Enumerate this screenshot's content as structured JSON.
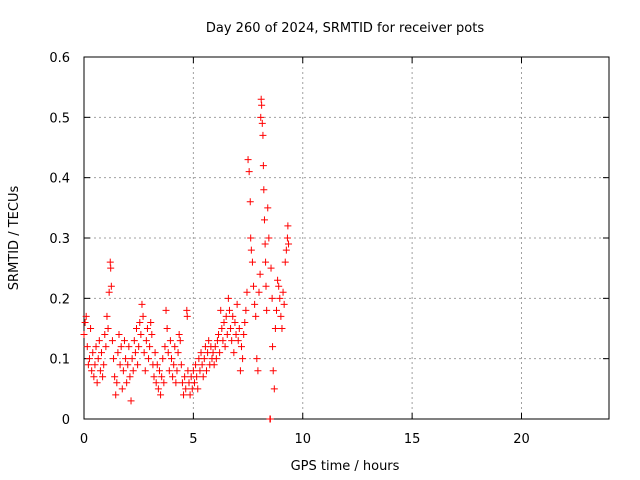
{
  "chart_data": {
    "type": "scatter",
    "title": "Day 260 of 2024, SRMTID for receiver pots",
    "xlabel": "GPS time / hours",
    "ylabel": "SRMTID / TECUs",
    "xlim": [
      0,
      24
    ],
    "ylim": [
      0,
      0.6
    ],
    "xticks": [
      0,
      5,
      10,
      15,
      20
    ],
    "xtick_labels": [
      "0",
      "5",
      "10",
      "15",
      "20"
    ],
    "yticks": [
      0,
      0.1,
      0.2,
      0.3,
      0.4,
      0.5,
      0.6
    ],
    "ytick_labels": [
      "0",
      "0.1",
      "0.2",
      "0.3",
      "0.4",
      "0.5",
      "0.6"
    ],
    "grid": true,
    "marker": "+",
    "color": "#ff0000",
    "series": [
      {
        "name": "SRMTID",
        "points": [
          [
            0.0,
            0.14
          ],
          [
            0.05,
            0.16
          ],
          [
            0.1,
            0.17
          ],
          [
            0.15,
            0.12
          ],
          [
            0.2,
            0.09
          ],
          [
            0.25,
            0.1
          ],
          [
            0.3,
            0.15
          ],
          [
            0.35,
            0.08
          ],
          [
            0.4,
            0.11
          ],
          [
            0.45,
            0.07
          ],
          [
            0.5,
            0.09
          ],
          [
            0.55,
            0.12
          ],
          [
            0.6,
            0.06
          ],
          [
            0.65,
            0.1
          ],
          [
            0.7,
            0.13
          ],
          [
            0.75,
            0.08
          ],
          [
            0.8,
            0.11
          ],
          [
            0.85,
            0.07
          ],
          [
            0.9,
            0.09
          ],
          [
            0.95,
            0.14
          ],
          [
            1.0,
            0.12
          ],
          [
            1.05,
            0.17
          ],
          [
            1.1,
            0.15
          ],
          [
            1.15,
            0.21
          ],
          [
            1.2,
            0.26
          ],
          [
            1.22,
            0.25
          ],
          [
            1.25,
            0.22
          ],
          [
            1.3,
            0.13
          ],
          [
            1.35,
            0.1
          ],
          [
            1.4,
            0.07
          ],
          [
            1.45,
            0.04
          ],
          [
            1.5,
            0.06
          ],
          [
            1.55,
            0.11
          ],
          [
            1.6,
            0.14
          ],
          [
            1.65,
            0.09
          ],
          [
            1.7,
            0.12
          ],
          [
            1.75,
            0.05
          ],
          [
            1.8,
            0.08
          ],
          [
            1.85,
            0.13
          ],
          [
            1.9,
            0.1
          ],
          [
            1.95,
            0.06
          ],
          [
            2.0,
            0.09
          ],
          [
            2.05,
            0.12
          ],
          [
            2.1,
            0.07
          ],
          [
            2.15,
            0.03
          ],
          [
            2.2,
            0.1
          ],
          [
            2.25,
            0.08
          ],
          [
            2.3,
            0.13
          ],
          [
            2.35,
            0.11
          ],
          [
            2.4,
            0.15
          ],
          [
            2.45,
            0.09
          ],
          [
            2.5,
            0.12
          ],
          [
            2.55,
            0.16
          ],
          [
            2.6,
            0.14
          ],
          [
            2.65,
            0.19
          ],
          [
            2.7,
            0.17
          ],
          [
            2.75,
            0.11
          ],
          [
            2.8,
            0.08
          ],
          [
            2.85,
            0.13
          ],
          [
            2.9,
            0.15
          ],
          [
            2.95,
            0.1
          ],
          [
            3.0,
            0.12
          ],
          [
            3.05,
            0.16
          ],
          [
            3.1,
            0.14
          ],
          [
            3.15,
            0.09
          ],
          [
            3.2,
            0.07
          ],
          [
            3.25,
            0.11
          ],
          [
            3.3,
            0.06
          ],
          [
            3.35,
            0.09
          ],
          [
            3.4,
            0.05
          ],
          [
            3.45,
            0.08
          ],
          [
            3.5,
            0.04
          ],
          [
            3.55,
            0.07
          ],
          [
            3.6,
            0.1
          ],
          [
            3.65,
            0.06
          ],
          [
            3.7,
            0.12
          ],
          [
            3.75,
            0.18
          ],
          [
            3.8,
            0.15
          ],
          [
            3.85,
            0.11
          ],
          [
            3.9,
            0.08
          ],
          [
            3.95,
            0.13
          ],
          [
            4.0,
            0.1
          ],
          [
            4.05,
            0.07
          ],
          [
            4.1,
            0.09
          ],
          [
            4.15,
            0.12
          ],
          [
            4.2,
            0.06
          ],
          [
            4.25,
            0.08
          ],
          [
            4.3,
            0.11
          ],
          [
            4.35,
            0.14
          ],
          [
            4.4,
            0.13
          ],
          [
            4.45,
            0.09
          ],
          [
            4.5,
            0.06
          ],
          [
            4.55,
            0.04
          ],
          [
            4.6,
            0.07
          ],
          [
            4.65,
            0.05
          ],
          [
            4.7,
            0.18
          ],
          [
            4.72,
            0.17
          ],
          [
            4.75,
            0.08
          ],
          [
            4.8,
            0.06
          ],
          [
            4.85,
            0.04
          ],
          [
            4.9,
            0.07
          ],
          [
            4.95,
            0.05
          ],
          [
            5.0,
            0.08
          ],
          [
            5.05,
            0.06
          ],
          [
            5.1,
            0.09
          ],
          [
            5.15,
            0.07
          ],
          [
            5.2,
            0.05
          ],
          [
            5.25,
            0.1
          ],
          [
            5.3,
            0.08
          ],
          [
            5.35,
            0.11
          ],
          [
            5.4,
            0.09
          ],
          [
            5.45,
            0.07
          ],
          [
            5.5,
            0.1
          ],
          [
            5.55,
            0.12
          ],
          [
            5.6,
            0.08
          ],
          [
            5.65,
            0.11
          ],
          [
            5.7,
            0.13
          ],
          [
            5.75,
            0.09
          ],
          [
            5.8,
            0.12
          ],
          [
            5.85,
            0.1
          ],
          [
            5.9,
            0.11
          ],
          [
            5.95,
            0.09
          ],
          [
            6.0,
            0.12
          ],
          [
            6.05,
            0.1
          ],
          [
            6.1,
            0.13
          ],
          [
            6.15,
            0.14
          ],
          [
            6.2,
            0.11
          ],
          [
            6.25,
            0.18
          ],
          [
            6.3,
            0.15
          ],
          [
            6.35,
            0.13
          ],
          [
            6.4,
            0.16
          ],
          [
            6.45,
            0.12
          ],
          [
            6.5,
            0.17
          ],
          [
            6.55,
            0.14
          ],
          [
            6.6,
            0.2
          ],
          [
            6.65,
            0.18
          ],
          [
            6.7,
            0.15
          ],
          [
            6.75,
            0.13
          ],
          [
            6.8,
            0.17
          ],
          [
            6.85,
            0.11
          ],
          [
            6.9,
            0.16
          ],
          [
            6.95,
            0.14
          ],
          [
            7.0,
            0.19
          ],
          [
            7.05,
            0.13
          ],
          [
            7.1,
            0.15
          ],
          [
            7.15,
            0.08
          ],
          [
            7.2,
            0.12
          ],
          [
            7.25,
            0.1
          ],
          [
            7.3,
            0.14
          ],
          [
            7.35,
            0.16
          ],
          [
            7.4,
            0.18
          ],
          [
            7.45,
            0.21
          ],
          [
            7.5,
            0.43
          ],
          [
            7.55,
            0.41
          ],
          [
            7.6,
            0.36
          ],
          [
            7.62,
            0.3
          ],
          [
            7.65,
            0.28
          ],
          [
            7.7,
            0.26
          ],
          [
            7.75,
            0.22
          ],
          [
            7.8,
            0.19
          ],
          [
            7.85,
            0.17
          ],
          [
            7.9,
            0.1
          ],
          [
            7.95,
            0.08
          ],
          [
            8.0,
            0.21
          ],
          [
            8.05,
            0.24
          ],
          [
            8.08,
            0.5
          ],
          [
            8.1,
            0.53
          ],
          [
            8.12,
            0.52
          ],
          [
            8.15,
            0.49
          ],
          [
            8.18,
            0.47
          ],
          [
            8.2,
            0.42
          ],
          [
            8.22,
            0.38
          ],
          [
            8.25,
            0.33
          ],
          [
            8.28,
            0.29
          ],
          [
            8.3,
            0.26
          ],
          [
            8.32,
            0.22
          ],
          [
            8.35,
            0.18
          ],
          [
            8.4,
            0.35
          ],
          [
            8.45,
            0.3
          ],
          [
            8.5,
            0.0
          ],
          [
            8.52,
            0.0
          ],
          [
            8.55,
            0.25
          ],
          [
            8.6,
            0.2
          ],
          [
            8.62,
            0.12
          ],
          [
            8.65,
            0.08
          ],
          [
            8.7,
            0.05
          ],
          [
            8.75,
            0.15
          ],
          [
            8.8,
            0.18
          ],
          [
            8.85,
            0.23
          ],
          [
            8.9,
            0.22
          ],
          [
            8.95,
            0.2
          ],
          [
            9.0,
            0.17
          ],
          [
            9.05,
            0.15
          ],
          [
            9.1,
            0.21
          ],
          [
            9.15,
            0.19
          ],
          [
            9.2,
            0.26
          ],
          [
            9.25,
            0.28
          ],
          [
            9.3,
            0.3
          ],
          [
            9.32,
            0.32
          ],
          [
            9.35,
            0.29
          ]
        ]
      }
    ]
  }
}
